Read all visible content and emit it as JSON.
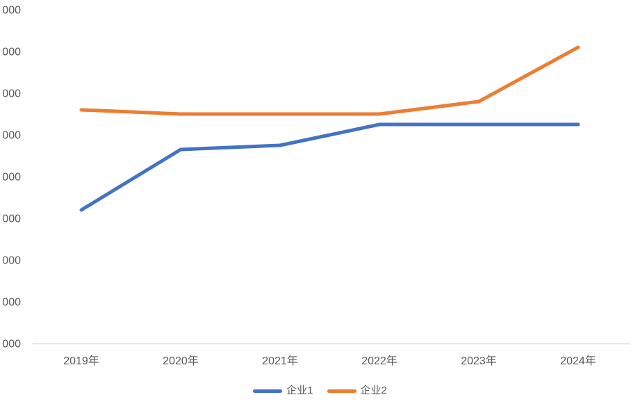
{
  "chart_data": {
    "type": "line",
    "title": "",
    "xlabel": "",
    "ylabel": "",
    "categories": [
      "2019年",
      "2020年",
      "2021年",
      "2022年",
      "2023年",
      "2024年"
    ],
    "series": [
      {
        "name": "企业1",
        "color": "#4472C4",
        "values": [
          4200,
          5650,
          5750,
          6250,
          6250,
          6250
        ]
      },
      {
        "name": "企业2",
        "color": "#ED7D31",
        "values": [
          6600,
          6500,
          6500,
          6500,
          6800,
          8100
        ]
      }
    ],
    "y_axis": {
      "min": 1000,
      "max": 9000,
      "step": 1000,
      "tick_labels_visible": [
        "000",
        "000",
        "000",
        "000",
        "000",
        "000",
        "000",
        "000",
        "000"
      ],
      "labels_truncated_at_left_edge": true
    },
    "grid": false,
    "legend_position": "bottom"
  },
  "colors": {
    "axis_line": "#d9d9d9",
    "label_text": "#595959",
    "series1": "#4472C4",
    "series2": "#ED7D31"
  }
}
